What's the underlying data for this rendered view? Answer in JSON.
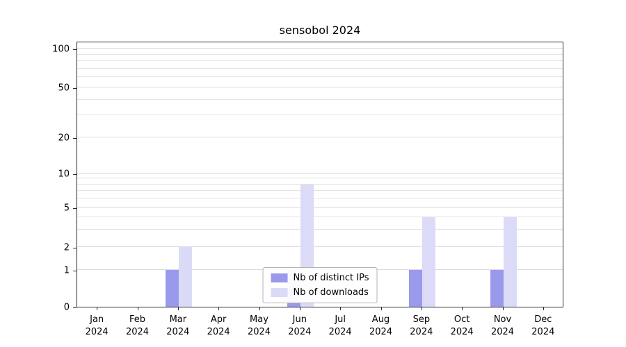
{
  "chart_data": {
    "type": "bar",
    "title": "sensobol 2024",
    "categories": [
      "Jan",
      "Feb",
      "Mar",
      "Apr",
      "May",
      "Jun",
      "Jul",
      "Aug",
      "Sep",
      "Oct",
      "Nov",
      "Dec"
    ],
    "x_year": "2024",
    "y_ticks": [
      0,
      1,
      2,
      5,
      10,
      20,
      50,
      100
    ],
    "y_scale": "log-like (symlog with 0 baseline)",
    "ylim": [
      0,
      115
    ],
    "grid": true,
    "legend_position": "lower center",
    "series": [
      {
        "name": "Nb of distinct IPs",
        "color": "#9a9aec",
        "values": [
          0,
          0,
          1,
          0,
          0,
          1,
          0,
          0,
          1,
          0,
          1,
          0
        ]
      },
      {
        "name": "Nb of downloads",
        "color": "#dbdbf8",
        "values": [
          0,
          0,
          2,
          0,
          0,
          8,
          0,
          0,
          4,
          0,
          4,
          0
        ]
      }
    ]
  }
}
